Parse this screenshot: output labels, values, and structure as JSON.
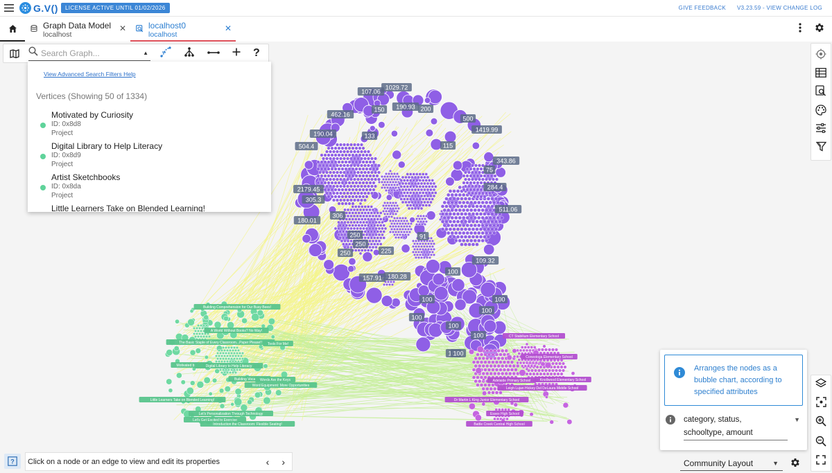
{
  "topbar": {
    "logo": "G.V()",
    "license": "LICENSE ACTIVE UNTIL 01/02/2026",
    "feedback": "GIVE FEEDBACK",
    "version": "V3.23.59 - VIEW CHANGE LOG"
  },
  "tabs": [
    {
      "title": "Graph Data Model",
      "subtitle": "localhost",
      "active": false
    },
    {
      "title": "localhost0",
      "subtitle": "localhost",
      "active": true
    }
  ],
  "search": {
    "placeholder": "Search Graph...",
    "advanced_link": "View Advanced Search Filters Help",
    "count_label": "Vertices (Showing 50 of 1334)"
  },
  "vertices": [
    {
      "title": "Motivated by Curiosity",
      "id": "ID: 0x8d8",
      "type": "Project"
    },
    {
      "title": "Digital Library to Help Literacy",
      "id": "ID: 0x8d9",
      "type": "Project"
    },
    {
      "title": "Artist Sketchbooks",
      "id": "ID: 0x8da",
      "type": "Project"
    },
    {
      "title": "Little Learners Take on Blended Learning!",
      "id": "",
      "type": ""
    }
  ],
  "layout_panel": {
    "info": "Arranges the nodes as a bubble chart, according to specified attributes",
    "attributes_line1": "category, status,",
    "attributes_line2": "schooltype, amount"
  },
  "status_bar": {
    "message": "Click on a node or an edge to view and edit its properties"
  },
  "layout_select": {
    "value": "Community Layout"
  },
  "graph": {
    "colors": {
      "purple": "#8f5fe6",
      "purple_dark": "#6e3fc7",
      "green": "#6fd9a2",
      "magenta": "#c565e0",
      "edge_yellow": "#f4f58a",
      "edge_green": "#c6ef9a",
      "label_bg": "#5c6b87",
      "label_green": "#59c48c",
      "label_magenta": "#b24fcf"
    },
    "purple_labels": [
      "107.06",
      "1029.72",
      "150",
      "190.93",
      "200",
      "462.16",
      "500",
      "1419.99",
      "190.04",
      "133",
      "504.4",
      "115",
      "343.86",
      "75",
      "2179.45",
      "284.4",
      "305.3",
      "511.06",
      "180.01",
      "306",
      "250",
      "250",
      "225",
      "91",
      "250",
      "109.32",
      "157.91",
      "180.28",
      "100",
      "100",
      "100",
      "100",
      "100",
      "100",
      "100",
      "100",
      "100"
    ],
    "green_labels": [
      "Building Comprehension for Our Busy Bees!",
      "A World Without Books? No Way!",
      "The Basic Staple of Every Classroom...Paper Please!!",
      "Tools For Me!",
      "Motivated by Curi",
      "Digital Library to Help Literacy",
      "Building Vocabulary",
      "Words Are the Keys",
      "Word Equipment: More Opportunities",
      "Little Learners Take on Blended Learning!",
      "Let's Personalization Through Technology",
      "Let's Get Excited to Exercise",
      "Introduction the Classroom: Flexible Seating!"
    ],
    "magenta_labels": [
      "CT Stabilium Elementary School",
      "Conestoga Elementary School",
      "Adelaide Primary School",
      "Knollwood Elementary School",
      "Leigh Lujan Hickey Del DeLaura Middle School",
      "Dr Martin L King Junior Elementary School",
      "Essex High School",
      "Battle Creek Central High School"
    ]
  }
}
